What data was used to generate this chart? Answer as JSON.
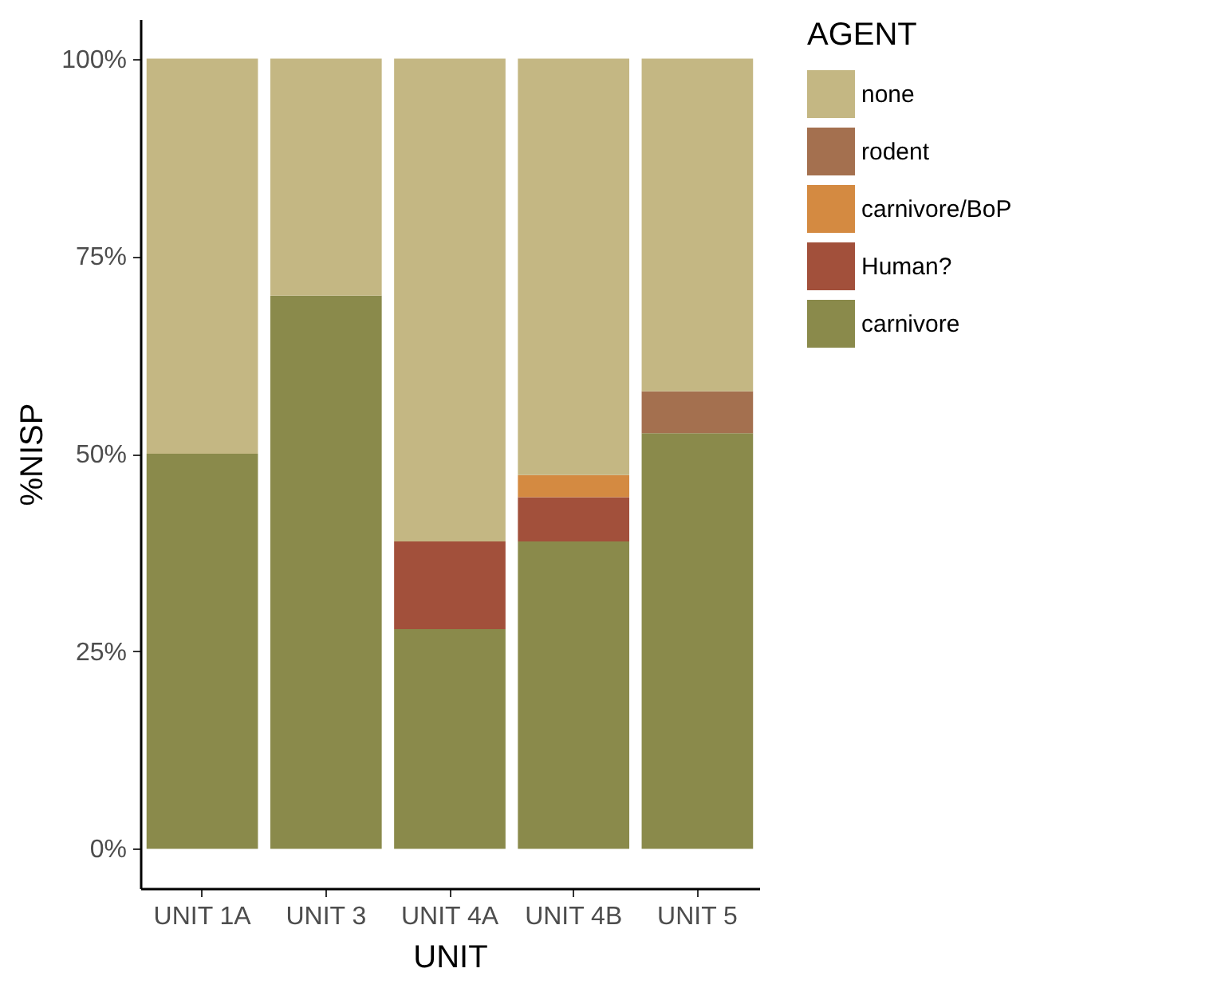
{
  "chart_data": {
    "type": "bar",
    "stacked": true,
    "xlabel": "UNIT",
    "ylabel": "%NISP",
    "legend_title": "AGENT",
    "legend": "right",
    "grid": false,
    "categories": [
      "UNIT 1A",
      "UNIT 3",
      "UNIT 4A",
      "UNIT 4B",
      "UNIT 5"
    ],
    "ylim": [
      -5,
      105
    ],
    "yticks": [
      {
        "value": 0,
        "label": "0%"
      },
      {
        "value": 25,
        "label": "25%"
      },
      {
        "value": 50,
        "label": "50%"
      },
      {
        "value": 75,
        "label": "75%"
      },
      {
        "value": 100,
        "label": "100%"
      }
    ],
    "series": [
      {
        "name": "carnivore",
        "color": "#8a8a4b",
        "values": [
          50,
          70,
          27.8,
          38.9,
          52.6
        ]
      },
      {
        "name": "Human?",
        "color": "#a2503b",
        "values": [
          null,
          null,
          11.1,
          5.6,
          null
        ]
      },
      {
        "name": "carnivore/BoP",
        "color": "#d48a41",
        "values": [
          null,
          null,
          null,
          2.8,
          null
        ]
      },
      {
        "name": "rodent",
        "color": "#a4704f",
        "values": [
          null,
          null,
          null,
          null,
          5.3
        ]
      },
      {
        "name": "none",
        "color": "#c4b783",
        "values": [
          50,
          30,
          61.1,
          52.7,
          42.1
        ]
      }
    ]
  }
}
